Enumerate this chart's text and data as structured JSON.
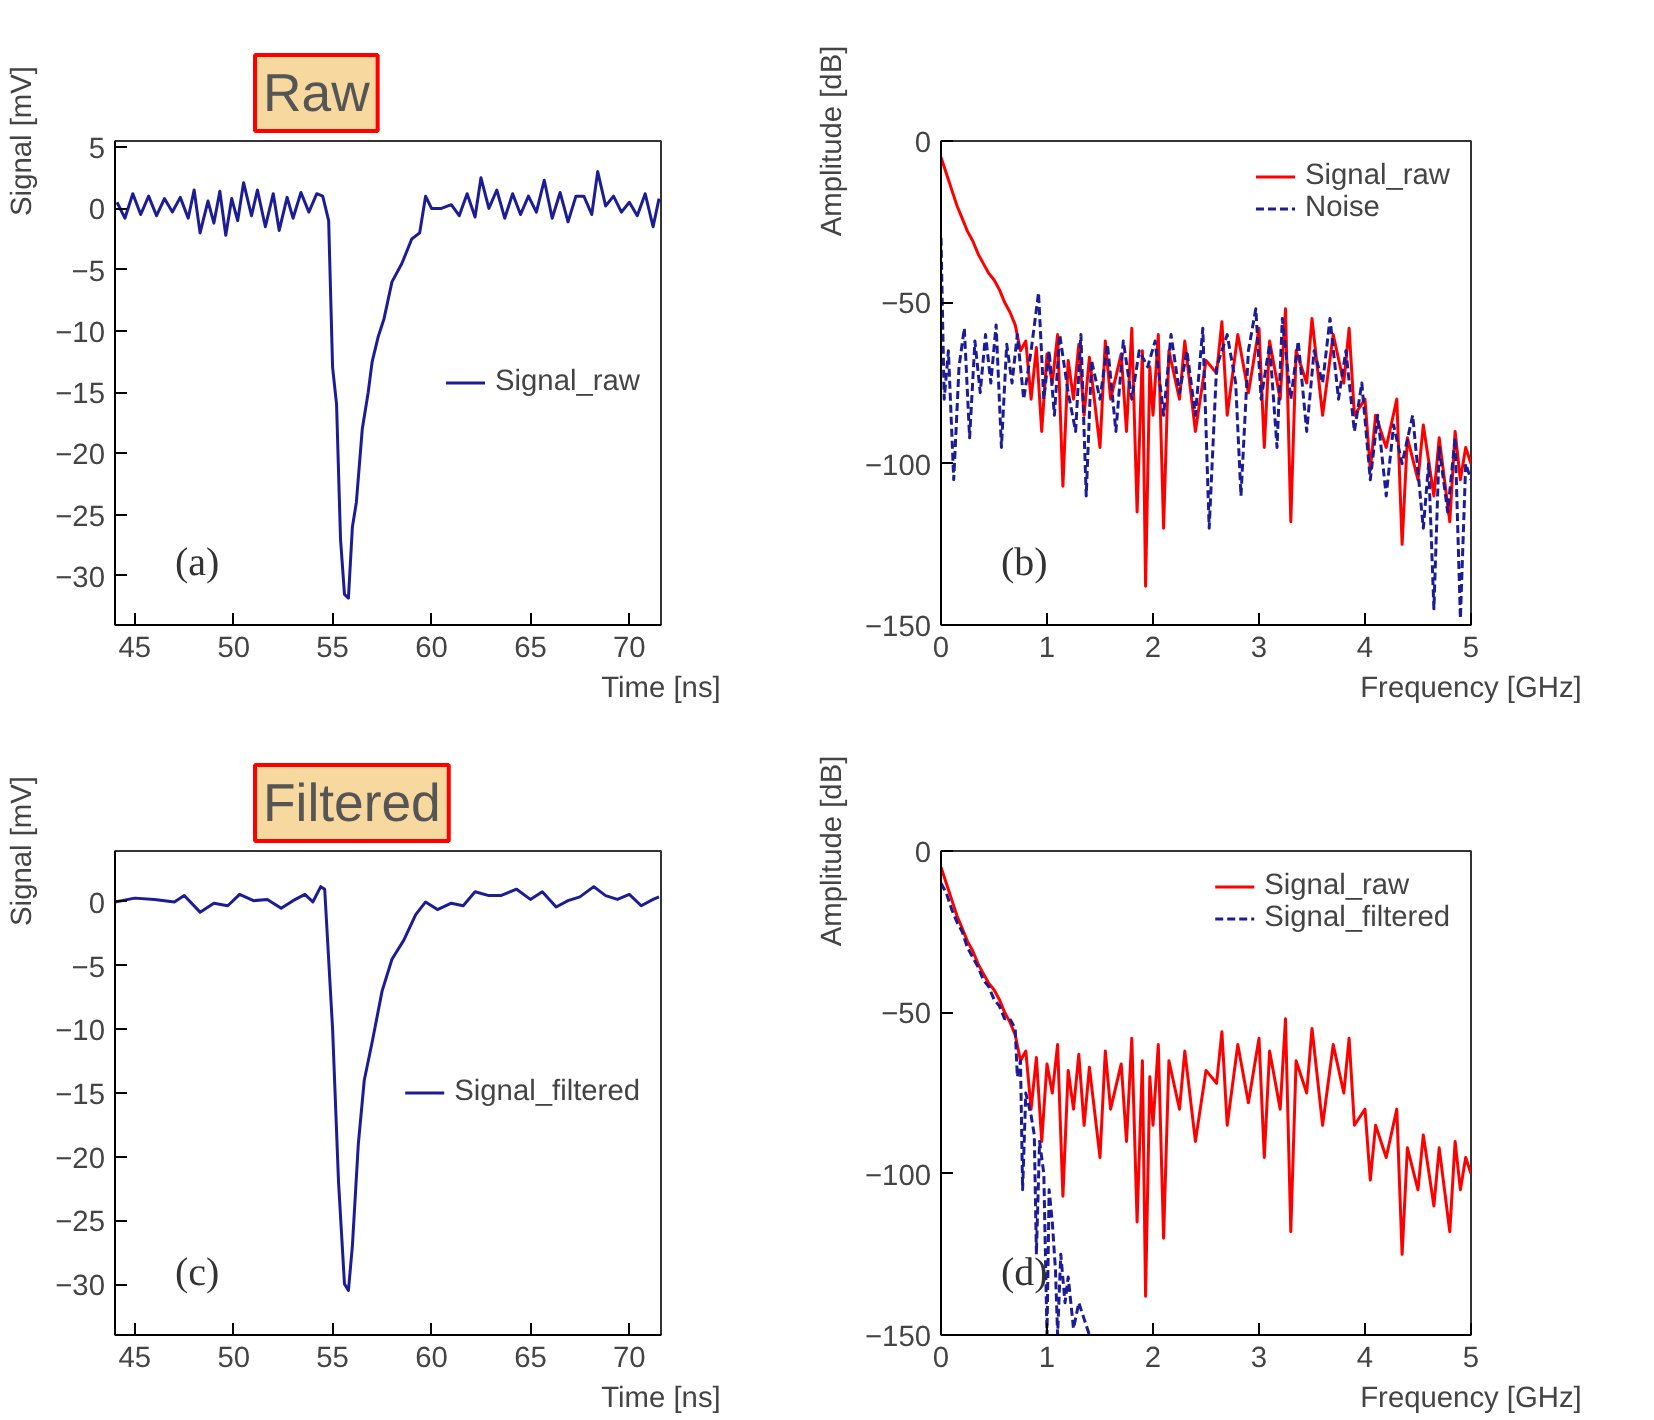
{
  "chart_data": [
    {
      "type": "line",
      "title": "Raw",
      "xlabel": "Time [ns]",
      "ylabel": "Signal [mV]",
      "xlim": [
        44,
        71.6
      ],
      "ylim": [
        -34,
        5.5
      ],
      "xticks": [
        45,
        50,
        55,
        60,
        65,
        70
      ],
      "yticks": [
        -30,
        -25,
        -20,
        -15,
        -10,
        -5,
        0,
        5
      ],
      "legend": "right",
      "annotations": [
        "(a)"
      ],
      "series": [
        {
          "name": "Signal_raw",
          "color": "#1c1c96",
          "line_style": "solid",
          "x": [
            44.1,
            44.5,
            44.9,
            45.3,
            45.7,
            46.1,
            46.5,
            46.9,
            47.3,
            47.7,
            48.0,
            48.3,
            48.7,
            49.0,
            49.3,
            49.6,
            49.9,
            50.2,
            50.5,
            50.9,
            51.2,
            51.6,
            52.0,
            52.3,
            52.7,
            53.0,
            53.4,
            53.8,
            54.2,
            54.5,
            54.8,
            55.0,
            55.2,
            55.4,
            55.6,
            55.8,
            56.0,
            56.2,
            56.5,
            56.8,
            57.0,
            57.3,
            57.6,
            58.0,
            58.5,
            59.0,
            59.4,
            59.7,
            60.0,
            60.5,
            61.0,
            61.4,
            61.8,
            62.2,
            62.5,
            62.9,
            63.3,
            63.7,
            64.1,
            64.5,
            64.9,
            65.3,
            65.7,
            66.1,
            66.5,
            66.9,
            67.3,
            67.7,
            68.1,
            68.4,
            68.8,
            69.2,
            69.6,
            70.0,
            70.4,
            70.8,
            71.2,
            71.5
          ],
          "values": [
            0.5,
            -0.8,
            1.2,
            -0.5,
            1.0,
            -0.6,
            0.8,
            -0.3,
            0.9,
            -0.8,
            1.5,
            -2.0,
            0.6,
            -1.2,
            1.4,
            -2.2,
            0.8,
            -1.0,
            2.1,
            -0.6,
            1.5,
            -1.5,
            1.2,
            -1.8,
            0.9,
            -0.8,
            1.3,
            -0.3,
            1.2,
            1.0,
            -1.0,
            -13,
            -16,
            -27,
            -31.5,
            -31.8,
            -26,
            -24,
            -18,
            -15,
            -12.5,
            -10.5,
            -9,
            -6,
            -4.5,
            -2.5,
            -2,
            1,
            0,
            0,
            0.3,
            -0.6,
            1.2,
            -0.7,
            2.5,
            0,
            1.5,
            -0.8,
            1.2,
            -0.5,
            1,
            -0.3,
            2.3,
            -0.8,
            1.3,
            -1.1,
            1,
            1,
            -0.5,
            3,
            0.2,
            1,
            -0.3,
            0.5,
            -0.6,
            1.2,
            -1.5,
            0.8
          ]
        }
      ]
    },
    {
      "type": "line",
      "xlabel": "Frequency [GHz]",
      "ylabel": "Amplitude [dB]",
      "xlim": [
        0,
        5
      ],
      "ylim": [
        -150,
        0
      ],
      "xticks": [
        0,
        1,
        2,
        3,
        4,
        5
      ],
      "yticks": [
        -150,
        -100,
        -50,
        0
      ],
      "legend": "top right",
      "annotations": [
        "(b)"
      ],
      "series": [
        {
          "name": "Signal_raw",
          "color": "#ff0000",
          "line_style": "solid",
          "x": [
            0,
            0.05,
            0.1,
            0.15,
            0.2,
            0.25,
            0.3,
            0.35,
            0.4,
            0.45,
            0.5,
            0.55,
            0.6,
            0.65,
            0.7,
            0.75,
            0.8,
            0.85,
            0.9,
            0.95,
            1.0,
            1.05,
            1.1,
            1.15,
            1.2,
            1.25,
            1.3,
            1.35,
            1.4,
            1.5,
            1.55,
            1.6,
            1.7,
            1.75,
            1.8,
            1.85,
            1.9,
            1.93,
            1.97,
            2.0,
            2.05,
            2.1,
            2.15,
            2.25,
            2.3,
            2.4,
            2.5,
            2.6,
            2.65,
            2.7,
            2.8,
            2.9,
            3.0,
            3.05,
            3.1,
            3.2,
            3.25,
            3.3,
            3.35,
            3.45,
            3.5,
            3.6,
            3.7,
            3.8,
            3.85,
            3.9,
            4.0,
            4.05,
            4.1,
            4.2,
            4.3,
            4.35,
            4.4,
            4.5,
            4.55,
            4.65,
            4.7,
            4.8,
            4.85,
            4.9,
            4.95,
            5.0
          ],
          "values": [
            -5,
            -10,
            -15,
            -20,
            -24,
            -28,
            -31,
            -35,
            -38,
            -41,
            -43,
            -46,
            -50,
            -53,
            -57,
            -65,
            -62,
            -80,
            -64,
            -90,
            -66,
            -75,
            -60,
            -107,
            -68,
            -80,
            -63,
            -85,
            -67,
            -95,
            -62,
            -80,
            -66,
            -90,
            -58,
            -115,
            -65,
            -138,
            -70,
            -85,
            -60,
            -120,
            -65,
            -80,
            -62,
            -90,
            -68,
            -72,
            -56,
            -85,
            -60,
            -78,
            -58,
            -95,
            -62,
            -80,
            -52,
            -118,
            -65,
            -75,
            -55,
            -85,
            -60,
            -75,
            -58,
            -85,
            -80,
            -102,
            -85,
            -95,
            -80,
            -125,
            -92,
            -105,
            -88,
            -110,
            -92,
            -118,
            -90,
            -105,
            -95,
            -100
          ]
        },
        {
          "name": "Noise",
          "color": "#1c1c96",
          "line_style": "dashed",
          "x": [
            0,
            0.03,
            0.07,
            0.12,
            0.17,
            0.22,
            0.27,
            0.32,
            0.37,
            0.42,
            0.47,
            0.52,
            0.57,
            0.62,
            0.67,
            0.72,
            0.78,
            0.85,
            0.92,
            0.97,
            1.02,
            1.07,
            1.12,
            1.2,
            1.27,
            1.32,
            1.37,
            1.42,
            1.5,
            1.57,
            1.65,
            1.72,
            1.8,
            1.87,
            1.95,
            2.02,
            2.1,
            2.17,
            2.25,
            2.32,
            2.4,
            2.47,
            2.53,
            2.6,
            2.7,
            2.78,
            2.83,
            2.9,
            2.97,
            3.02,
            3.1,
            3.17,
            3.22,
            3.3,
            3.37,
            3.45,
            3.52,
            3.6,
            3.67,
            3.75,
            3.82,
            3.9,
            3.97,
            4.05,
            4.12,
            4.2,
            4.27,
            4.35,
            4.45,
            4.55,
            4.6,
            4.65,
            4.7,
            4.78,
            4.85,
            4.9,
            4.95,
            5.0
          ],
          "values": [
            -30,
            -80,
            -65,
            -105,
            -70,
            -58,
            -92,
            -62,
            -78,
            -60,
            -75,
            -57,
            -95,
            -63,
            -75,
            -60,
            -80,
            -65,
            -47,
            -80,
            -65,
            -85,
            -60,
            -78,
            -90,
            -60,
            -110,
            -68,
            -80,
            -63,
            -90,
            -62,
            -80,
            -65,
            -70,
            -62,
            -85,
            -60,
            -78,
            -65,
            -85,
            -58,
            -120,
            -70,
            -60,
            -75,
            -110,
            -65,
            -52,
            -80,
            -63,
            -95,
            -55,
            -80,
            -62,
            -90,
            -65,
            -75,
            -55,
            -80,
            -65,
            -90,
            -75,
            -105,
            -85,
            -110,
            -88,
            -100,
            -85,
            -120,
            -100,
            -145,
            -95,
            -115,
            -92,
            -148,
            -100,
            -105
          ]
        }
      ]
    },
    {
      "type": "line",
      "title": "Filtered",
      "xlabel": "Time [ns]",
      "ylabel": "Signal [mV]",
      "xlim": [
        44,
        71.6
      ],
      "ylim": [
        -34,
        4
      ],
      "xticks": [
        45,
        50,
        55,
        60,
        65,
        70
      ],
      "yticks": [
        -30,
        -25,
        -20,
        -15,
        -10,
        -5,
        0
      ],
      "legend": "right",
      "annotations": [
        "(c)"
      ],
      "series": [
        {
          "name": "Signal_filtered",
          "color": "#1c1c96",
          "line_style": "solid",
          "x": [
            44.0,
            45,
            46,
            47,
            47.5,
            48.3,
            49,
            49.7,
            50.3,
            51,
            51.7,
            52.4,
            53,
            53.6,
            54,
            54.4,
            54.6,
            55.0,
            55.3,
            55.6,
            55.8,
            56.0,
            56.3,
            56.6,
            57.0,
            57.5,
            58.0,
            58.6,
            59.2,
            59.7,
            60.3,
            61,
            61.6,
            62.2,
            62.9,
            63.5,
            64.3,
            65.0,
            65.6,
            66.3,
            66.9,
            67.5,
            68.2,
            68.8,
            69.4,
            70,
            70.6,
            71.2,
            71.5
          ],
          "values": [
            0,
            0.3,
            0.2,
            0,
            0.5,
            -0.8,
            -0.1,
            -0.3,
            0.6,
            0.1,
            0.2,
            -0.5,
            0.1,
            0.6,
            0,
            1.2,
            1,
            -10,
            -22,
            -30,
            -30.5,
            -27,
            -19,
            -14,
            -11,
            -7,
            -4.5,
            -3,
            -1,
            0,
            -0.6,
            -0.1,
            -0.3,
            0.8,
            0.5,
            0.5,
            1,
            0.2,
            0.8,
            -0.4,
            0.1,
            0.4,
            1.2,
            0.5,
            0.2,
            0.6,
            -0.3,
            0.2,
            0.4
          ]
        }
      ]
    },
    {
      "type": "line",
      "xlabel": "Frequency [GHz]",
      "ylabel": "Amplitude [dB]",
      "xlim": [
        0,
        5
      ],
      "ylim": [
        -150,
        0
      ],
      "xticks": [
        0,
        1,
        2,
        3,
        4,
        5
      ],
      "yticks": [
        -150,
        -100,
        -50,
        0
      ],
      "legend": "top right",
      "annotations": [
        "(d)"
      ],
      "series": [
        {
          "name": "Signal_raw",
          "color": "#ff0000",
          "line_style": "solid",
          "x": [
            0,
            0.05,
            0.1,
            0.15,
            0.2,
            0.25,
            0.3,
            0.35,
            0.4,
            0.45,
            0.5,
            0.55,
            0.6,
            0.65,
            0.7,
            0.75,
            0.8,
            0.85,
            0.9,
            0.95,
            1.0,
            1.05,
            1.1,
            1.15,
            1.2,
            1.25,
            1.3,
            1.35,
            1.4,
            1.5,
            1.55,
            1.6,
            1.7,
            1.75,
            1.8,
            1.85,
            1.9,
            1.93,
            1.97,
            2.0,
            2.05,
            2.1,
            2.15,
            2.25,
            2.3,
            2.4,
            2.5,
            2.6,
            2.65,
            2.7,
            2.8,
            2.9,
            3.0,
            3.05,
            3.1,
            3.2,
            3.25,
            3.3,
            3.35,
            3.45,
            3.5,
            3.6,
            3.7,
            3.8,
            3.85,
            3.9,
            4.0,
            4.05,
            4.1,
            4.2,
            4.3,
            4.35,
            4.4,
            4.5,
            4.55,
            4.65,
            4.7,
            4.8,
            4.85,
            4.9,
            4.95,
            5.0
          ],
          "values": [
            -5,
            -10,
            -15,
            -20,
            -24,
            -28,
            -31,
            -35,
            -38,
            -41,
            -43,
            -46,
            -50,
            -53,
            -57,
            -65,
            -62,
            -80,
            -64,
            -90,
            -66,
            -75,
            -60,
            -107,
            -68,
            -80,
            -63,
            -85,
            -67,
            -95,
            -62,
            -80,
            -66,
            -90,
            -58,
            -115,
            -65,
            -138,
            -70,
            -85,
            -60,
            -120,
            -65,
            -80,
            -62,
            -90,
            -68,
            -72,
            -56,
            -85,
            -60,
            -78,
            -58,
            -95,
            -62,
            -80,
            -52,
            -118,
            -65,
            -75,
            -55,
            -85,
            -60,
            -75,
            -58,
            -85,
            -80,
            -102,
            -85,
            -95,
            -80,
            -125,
            -92,
            -105,
            -88,
            -110,
            -92,
            -118,
            -90,
            -105,
            -95,
            -100
          ]
        },
        {
          "name": "Signal_filtered",
          "color": "#1c1c96",
          "line_style": "dashed",
          "x": [
            0,
            0.05,
            0.1,
            0.15,
            0.2,
            0.25,
            0.3,
            0.35,
            0.4,
            0.45,
            0.5,
            0.55,
            0.6,
            0.65,
            0.7,
            0.72,
            0.75,
            0.77,
            0.8,
            0.85,
            0.88,
            0.9,
            0.93,
            0.97,
            1.0,
            1.02,
            1.05,
            1.08,
            1.1,
            1.13,
            1.17,
            1.2,
            1.25,
            1.3,
            1.35,
            1.4
          ],
          "values": [
            -10,
            -13,
            -18,
            -22,
            -25,
            -30,
            -33,
            -36,
            -40,
            -42,
            -46,
            -48,
            -52,
            -52,
            -55,
            -70,
            -65,
            -105,
            -75,
            -82,
            -88,
            -125,
            -90,
            -100,
            -150,
            -105,
            -115,
            -130,
            -150,
            -125,
            -140,
            -132,
            -148,
            -140,
            -145,
            -150
          ]
        }
      ]
    }
  ]
}
